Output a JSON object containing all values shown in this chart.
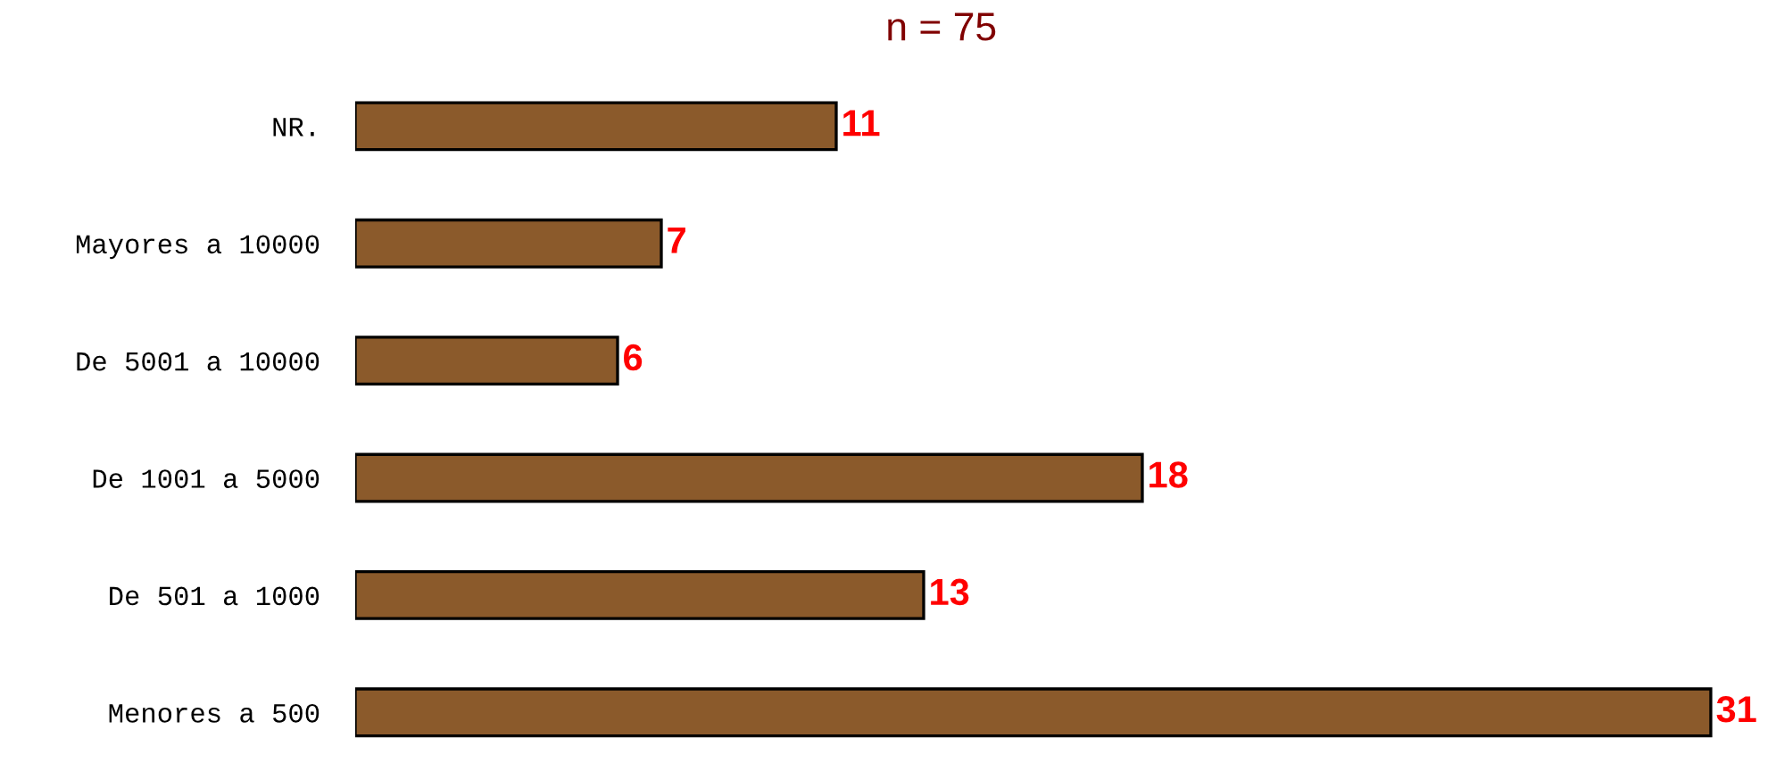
{
  "chart_data": {
    "type": "bar",
    "orientation": "horizontal",
    "title": "n = 75",
    "categories": [
      "NR.",
      "Mayores a 10000",
      "De 5001 a 10000",
      "De 1001 a 5000",
      "De 501 a 1000",
      "Menores a 500"
    ],
    "values": [
      11,
      7,
      6,
      18,
      13,
      31
    ],
    "color": "#8b5a2b",
    "data_labels": true,
    "grid": false,
    "legend": false
  }
}
